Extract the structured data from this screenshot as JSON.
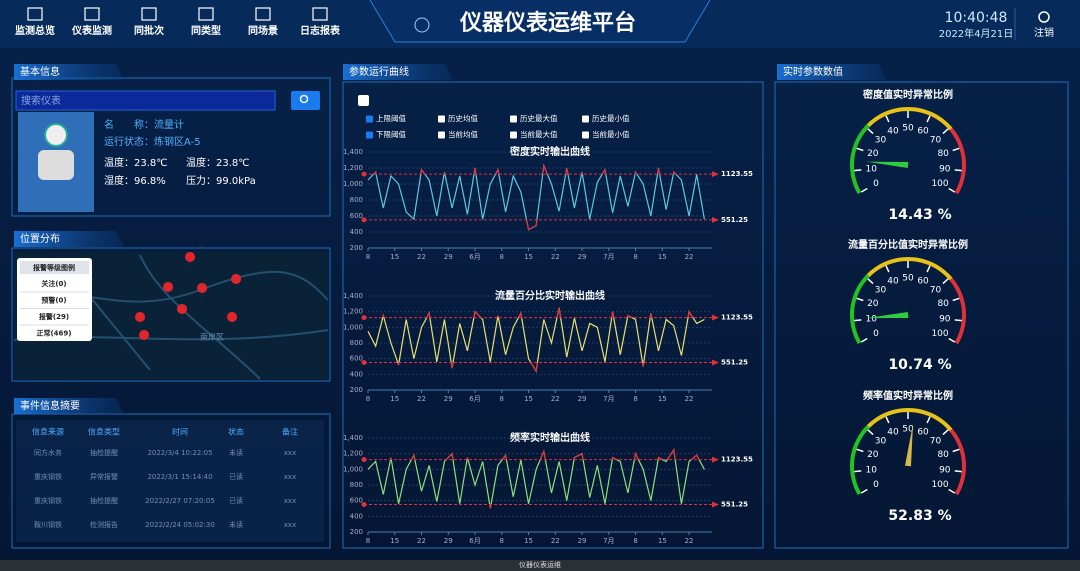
{
  "header": {
    "nav": [
      "监测总览",
      "仪表监测",
      "同批次",
      "同类型",
      "同场景",
      "日志报表"
    ],
    "title": "仪器仪表运维平台",
    "time": "10:40:48",
    "date": "2022年4月21日",
    "logout": "注销"
  },
  "basic_info": {
    "heading": "基本信息",
    "search_placeholder": "搜索仪表",
    "name": "名　　称：流量计",
    "status": "运行状态：炼钢区A-5",
    "fields": [
      "温度：23.8℃",
      "温度：23.8℃",
      "湿度：96.8%",
      "压力：99.0kPa"
    ]
  },
  "location": {
    "heading": "位置分布",
    "legend_title": "报警等级图例",
    "legend": [
      "关注(0)",
      "预警(0)",
      "报警(29)",
      "正常(469)"
    ],
    "map_labels": [
      "南岸区"
    ]
  },
  "events": {
    "heading": "事件信息摘要",
    "columns": [
      "信息来源",
      "信息类型",
      "时间",
      "状态",
      "备注"
    ],
    "rows": [
      [
        "同方水务",
        "抽检提醒",
        "2022/3/4 10:22:05",
        "未读",
        "xxx"
      ],
      [
        "重庆钢铁",
        "异常报警",
        "2022/3/1 15:14:40",
        "已读",
        "xxx"
      ],
      [
        "重庆钢铁",
        "抽检提醒",
        "2022/2/27 07:20:05",
        "已读",
        "xxx"
      ],
      [
        "鞍川钢铁",
        "检测报告",
        "2022/2/24 05:02:30",
        "未读",
        "xxx"
      ]
    ]
  },
  "curves": {
    "heading": "参数运行曲线",
    "options": [
      {
        "label": "上限阈值",
        "checked": true
      },
      {
        "label": "历史均值",
        "checked": false
      },
      {
        "label": "历史最大值",
        "checked": false
      },
      {
        "label": "历史最小值",
        "checked": false
      },
      {
        "label": "下限阈值",
        "checked": true
      },
      {
        "label": "当前均值",
        "checked": false
      },
      {
        "label": "当前最大值",
        "checked": false
      },
      {
        "label": "当前最小值",
        "checked": false
      }
    ],
    "x": [
      0,
      2,
      4,
      6,
      8,
      10,
      12,
      14,
      16,
      18,
      20,
      22,
      24,
      26,
      28,
      30,
      32,
      34,
      36,
      38,
      40,
      42,
      44,
      46,
      48,
      50,
      52,
      54,
      56,
      58,
      60,
      62,
      64,
      66,
      68,
      70,
      72,
      74,
      76,
      78,
      80,
      82,
      84,
      86,
      88
    ],
    "xlim": [
      0,
      90
    ],
    "xticks": [
      {
        "value": 0,
        "label": "8"
      },
      {
        "value": 7,
        "label": "15"
      },
      {
        "value": 14,
        "label": "22"
      },
      {
        "value": 21,
        "label": "29"
      },
      {
        "value": 28,
        "label": "6月"
      },
      {
        "value": 35,
        "label": "8"
      },
      {
        "value": 42,
        "label": "15"
      },
      {
        "value": 49,
        "label": "22"
      },
      {
        "value": 56,
        "label": "29"
      },
      {
        "value": 63,
        "label": "7月"
      },
      {
        "value": 70,
        "label": "8"
      },
      {
        "value": 77,
        "label": "15"
      },
      {
        "value": 84,
        "label": "22"
      }
    ],
    "ylim": [
      200,
      1400
    ],
    "yticks": [
      200,
      400,
      600,
      800,
      {
        "value": 1000,
        "label": "1,000"
      },
      {
        "value": 1200,
        "label": "1,200"
      },
      {
        "value": 1400,
        "label": "1,400"
      }
    ],
    "upper": 1123.55,
    "lower": 551.25,
    "charts": [
      {
        "type": "line",
        "title": "密度实时输出曲线",
        "color": "#5cc8e0",
        "values": [
          1050,
          1150,
          700,
          1100,
          1000,
          650,
          560,
          1180,
          1050,
          600,
          1150,
          700,
          1100,
          620,
          1200,
          560,
          1000,
          1180,
          650,
          1100,
          900,
          430,
          480,
          1230,
          1000,
          660,
          1200,
          700,
          1150,
          560,
          1020,
          1180,
          640,
          1100,
          720,
          1150,
          1000,
          600,
          1200,
          680,
          1150,
          1050,
          600,
          1120,
          560
        ]
      },
      {
        "type": "line",
        "title": "流量百分比实时输出曲线",
        "color": "#e8e070",
        "values": [
          950,
          760,
          1150,
          800,
          520,
          1100,
          600,
          1000,
          1180,
          560,
          1100,
          480,
          1050,
          700,
          1200,
          1100,
          560,
          1150,
          650,
          1000,
          1180,
          600,
          440,
          1100,
          800,
          1250,
          620,
          1120,
          700,
          1050,
          1000,
          560,
          1200,
          650,
          1150,
          1100,
          500,
          1180,
          700,
          1100,
          1020,
          640,
          1200,
          1050,
          1100
        ]
      },
      {
        "type": "line",
        "title": "频率实时输出曲线",
        "color": "#8ee07a",
        "values": [
          1000,
          1100,
          680,
          1150,
          560,
          1000,
          1180,
          720,
          1050,
          590,
          1100,
          1200,
          560,
          1150,
          800,
          1100,
          500,
          1050,
          1180,
          650,
          1120,
          560,
          1000,
          1230,
          700,
          1100,
          600,
          1150,
          1200,
          640,
          1050,
          560,
          1150,
          1100,
          700,
          1200,
          1000,
          600,
          1150,
          1100,
          1250,
          560,
          1100,
          1180,
          1000
        ]
      }
    ]
  },
  "gauges": {
    "heading": "实时参数数值",
    "lim": [
      0,
      100
    ],
    "ticks": [
      0,
      10,
      20,
      30,
      40,
      50,
      60,
      70,
      80,
      90,
      100
    ],
    "items": [
      {
        "type": "gauge",
        "title": "密度值实时异常比例",
        "value": 14.43,
        "value_label": "14.43 %",
        "color": "#2ecc40"
      },
      {
        "type": "gauge",
        "title": "流量百分比值实时异常比例",
        "value": 10.74,
        "value_label": "10.74 %",
        "color": "#2ecc40"
      },
      {
        "type": "gauge",
        "title": "频率值实时异常比例",
        "value": 52.83,
        "value_label": "52.83 %",
        "color": "#d8b84a"
      }
    ]
  },
  "footer": "仪器仪表运维"
}
